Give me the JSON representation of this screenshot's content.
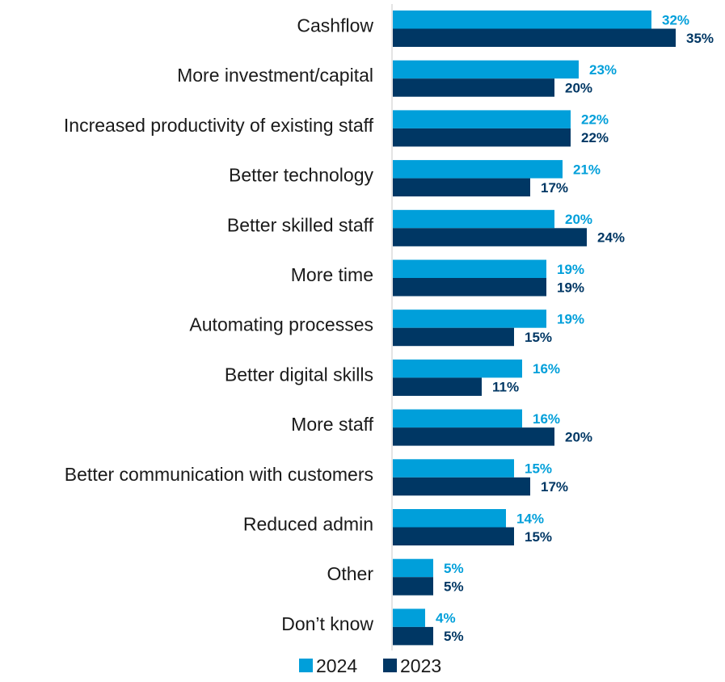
{
  "chart_data": {
    "type": "bar",
    "orientation": "horizontal",
    "categories": [
      "Cashflow",
      "More investment/capital",
      "Increased productivity of existing staff",
      "Better technology",
      "Better skilled staff",
      "More time",
      "Automating processes",
      "Better digital skills",
      "More staff",
      "Better communication with customers",
      "Reduced admin",
      "Other",
      "Don’t know"
    ],
    "series": [
      {
        "name": "2024",
        "values": [
          32,
          23,
          22,
          21,
          20,
          19,
          19,
          16,
          16,
          15,
          14,
          5,
          4
        ],
        "labels": [
          "32%",
          "23%",
          "22%",
          "21%",
          "20%",
          "19%",
          "19%",
          "16%",
          "16%",
          "15%",
          "14%",
          "5%",
          "4%"
        ]
      },
      {
        "name": "2023",
        "values": [
          35,
          20,
          22,
          17,
          24,
          19,
          15,
          11,
          20,
          17,
          15,
          5,
          5
        ],
        "labels": [
          "35%",
          "20%",
          "22%",
          "17%",
          "24%",
          "19%",
          "15%",
          "11%",
          "20%",
          "17%",
          "15%",
          "5%",
          "5%"
        ]
      }
    ],
    "title": "",
    "xlabel": "",
    "ylabel": "",
    "xlim": [
      0,
      40
    ],
    "grid": false,
    "legend_position": "bottom",
    "colors": {
      "2024": "#009FDA",
      "2023": "#003764"
    }
  }
}
